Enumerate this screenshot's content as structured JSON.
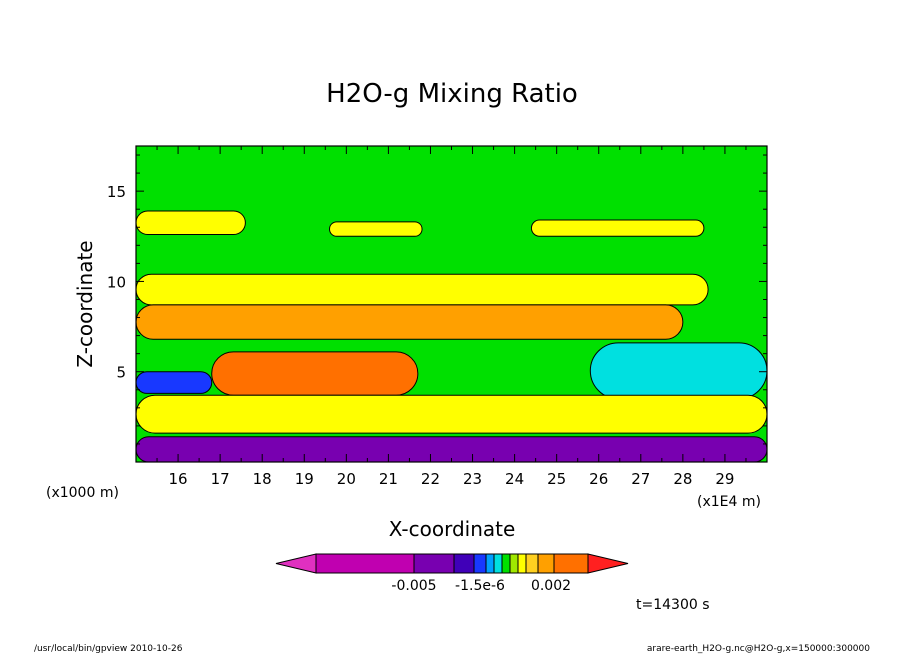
{
  "chart_data": {
    "type": "heatmap",
    "title": "H2O-g Mixing Ratio",
    "xlabel": "X-coordinate",
    "ylabel": "Z-coordinate",
    "x_unit": "(x1E4 m)",
    "y_unit": "(x1000 m)",
    "xlim": [
      15.0,
      30.0
    ],
    "ylim": [
      0,
      17.5
    ],
    "x_ticks": [
      16,
      17,
      18,
      19,
      20,
      21,
      22,
      23,
      24,
      25,
      26,
      27,
      28,
      29
    ],
    "y_ticks": [
      5,
      10,
      15
    ],
    "colorbar": {
      "colors": [
        "#e030c0",
        "#c000b0",
        "#7800b0",
        "#4000b8",
        "#1838ff",
        "#00a0ff",
        "#00e0e0",
        "#00e000",
        "#a0e800",
        "#ffff00",
        "#ffd020",
        "#ffa000",
        "#ff7000",
        "#ff2020"
      ],
      "tick_labels": [
        "-0.005",
        "-1.5e-6",
        "0.002"
      ]
    },
    "time_label": "t=14300 s",
    "regions": [
      {
        "level": "green",
        "x_range": [
          15.0,
          30.0
        ],
        "z_range": [
          0,
          17.5
        ]
      },
      {
        "level": "yellow",
        "x_range": [
          15.0,
          17.6
        ],
        "z_range": [
          12.6,
          13.9
        ]
      },
      {
        "level": "yellow",
        "x_range": [
          19.6,
          21.8
        ],
        "z_range": [
          12.5,
          13.3
        ]
      },
      {
        "level": "yellow",
        "x_range": [
          24.4,
          28.5
        ],
        "z_range": [
          12.5,
          13.4
        ]
      },
      {
        "level": "yellow",
        "x_range": [
          15.0,
          28.6
        ],
        "z_range": [
          8.7,
          10.4
        ]
      },
      {
        "level": "orange",
        "x_range": [
          15.0,
          28.0
        ],
        "z_range": [
          6.8,
          8.7
        ]
      },
      {
        "level": "deep-orange",
        "x_range": [
          16.8,
          21.7
        ],
        "z_range": [
          3.7,
          6.1
        ]
      },
      {
        "level": "cyan",
        "x_range": [
          25.8,
          30.0
        ],
        "z_range": [
          3.5,
          6.6
        ]
      },
      {
        "level": "blue",
        "x_range": [
          15.0,
          16.8
        ],
        "z_range": [
          3.8,
          5.0
        ]
      },
      {
        "level": "yellow",
        "x_range": [
          15.0,
          30.0
        ],
        "z_range": [
          1.6,
          3.7
        ]
      },
      {
        "level": "purple",
        "x_range": [
          15.0,
          30.0
        ],
        "z_range": [
          0,
          1.4
        ]
      }
    ]
  },
  "footer": {
    "left": "/usr/local/bin/gpview  2010-10-26",
    "right": "arare-earth_H2O-g.nc@H2O-g,x=150000:300000"
  }
}
